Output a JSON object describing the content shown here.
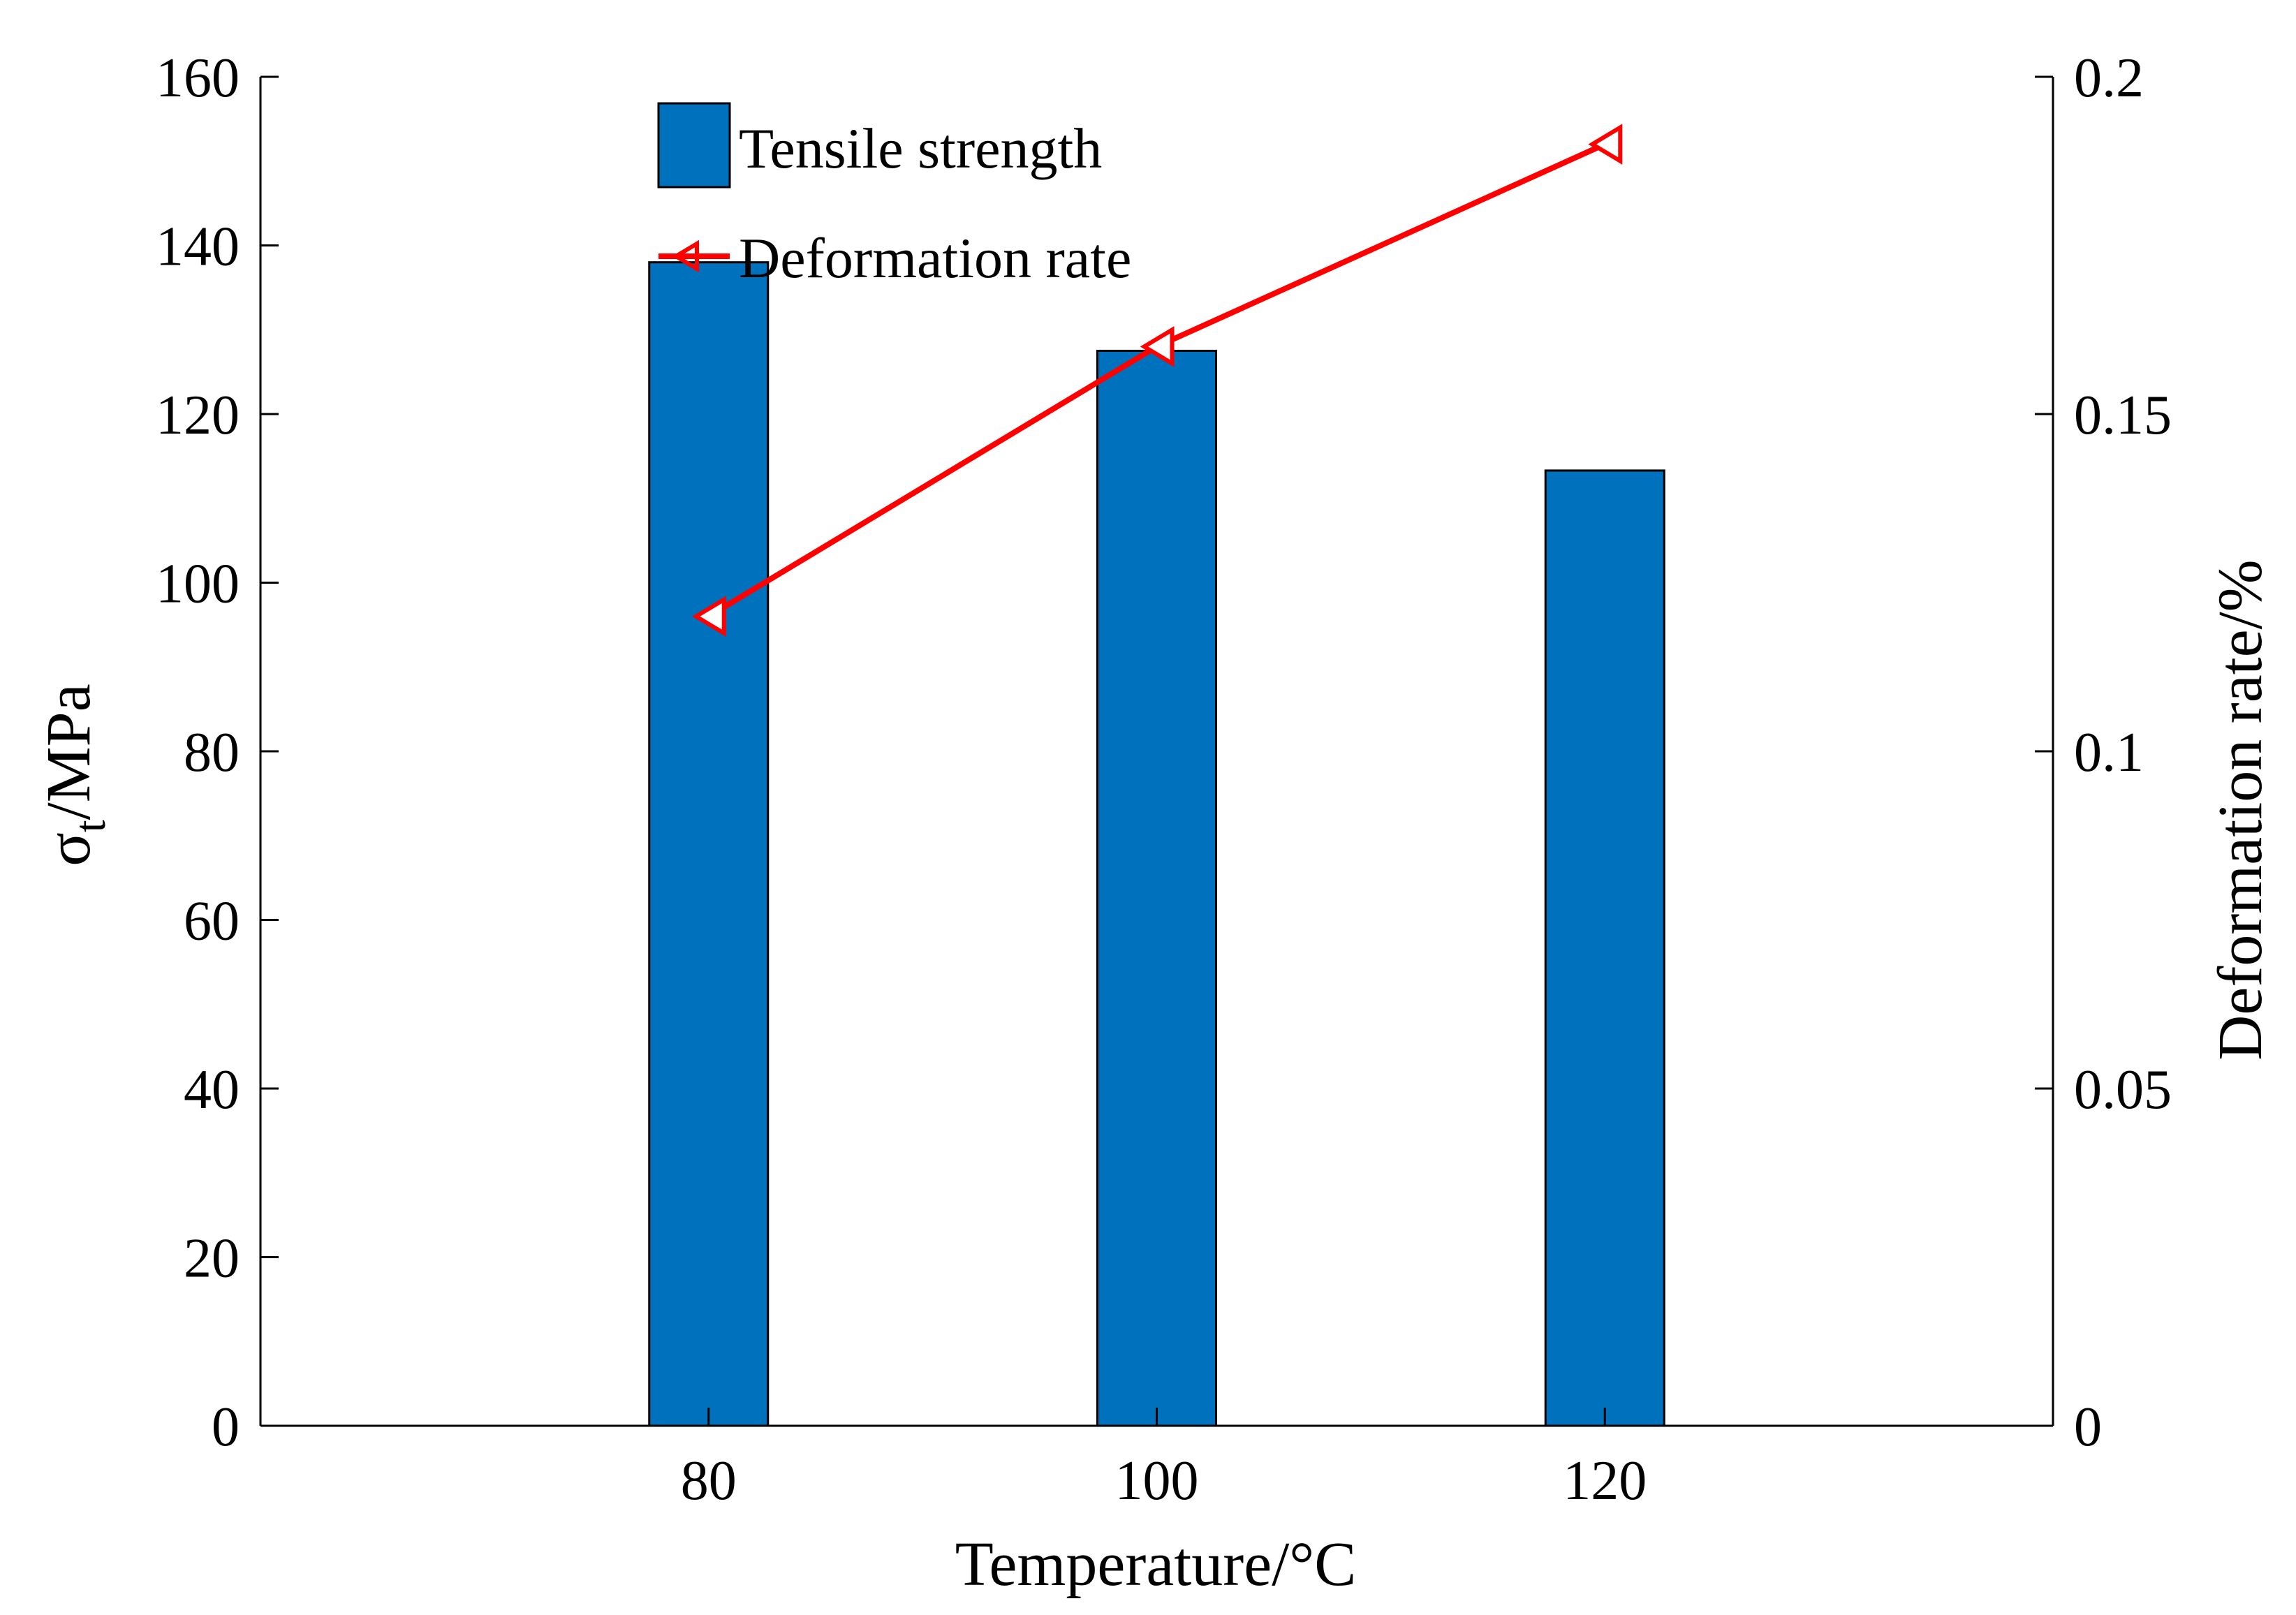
{
  "chart_data": {
    "type": "bar",
    "categories": [
      "80",
      "100",
      "120"
    ],
    "xlabel": "Temperature/°C",
    "ylabel_left": {
      "main": "σ",
      "sub": "t",
      "rest": "/MPa"
    },
    "ylabel_right": "Deformation rate/%",
    "ylim_left": [
      0,
      160
    ],
    "yticks_left": [
      0,
      20,
      40,
      60,
      80,
      100,
      120,
      140,
      160
    ],
    "ytick_labels_left": [
      "0",
      "20",
      "40",
      "60",
      "80",
      "100",
      "120",
      "140",
      "160"
    ],
    "ylim_right": [
      0,
      0.2
    ],
    "yticks_right": [
      0,
      0.05,
      0.1,
      0.15,
      0.2
    ],
    "ytick_labels_right": [
      "0",
      "0.05",
      "0.1",
      "0.15",
      "0.2"
    ],
    "grid": false,
    "legend_position": "top-center",
    "series": [
      {
        "name": "Tensile strength",
        "type": "bar",
        "axis": "left",
        "values": [
          138,
          127.5,
          113.3
        ],
        "color": "#0072BD"
      },
      {
        "name": "Deformation rate",
        "type": "line",
        "axis": "right",
        "marker": "left-triangle",
        "values": [
          0.12,
          0.16,
          0.19
        ],
        "color": "#FF0000"
      }
    ]
  }
}
